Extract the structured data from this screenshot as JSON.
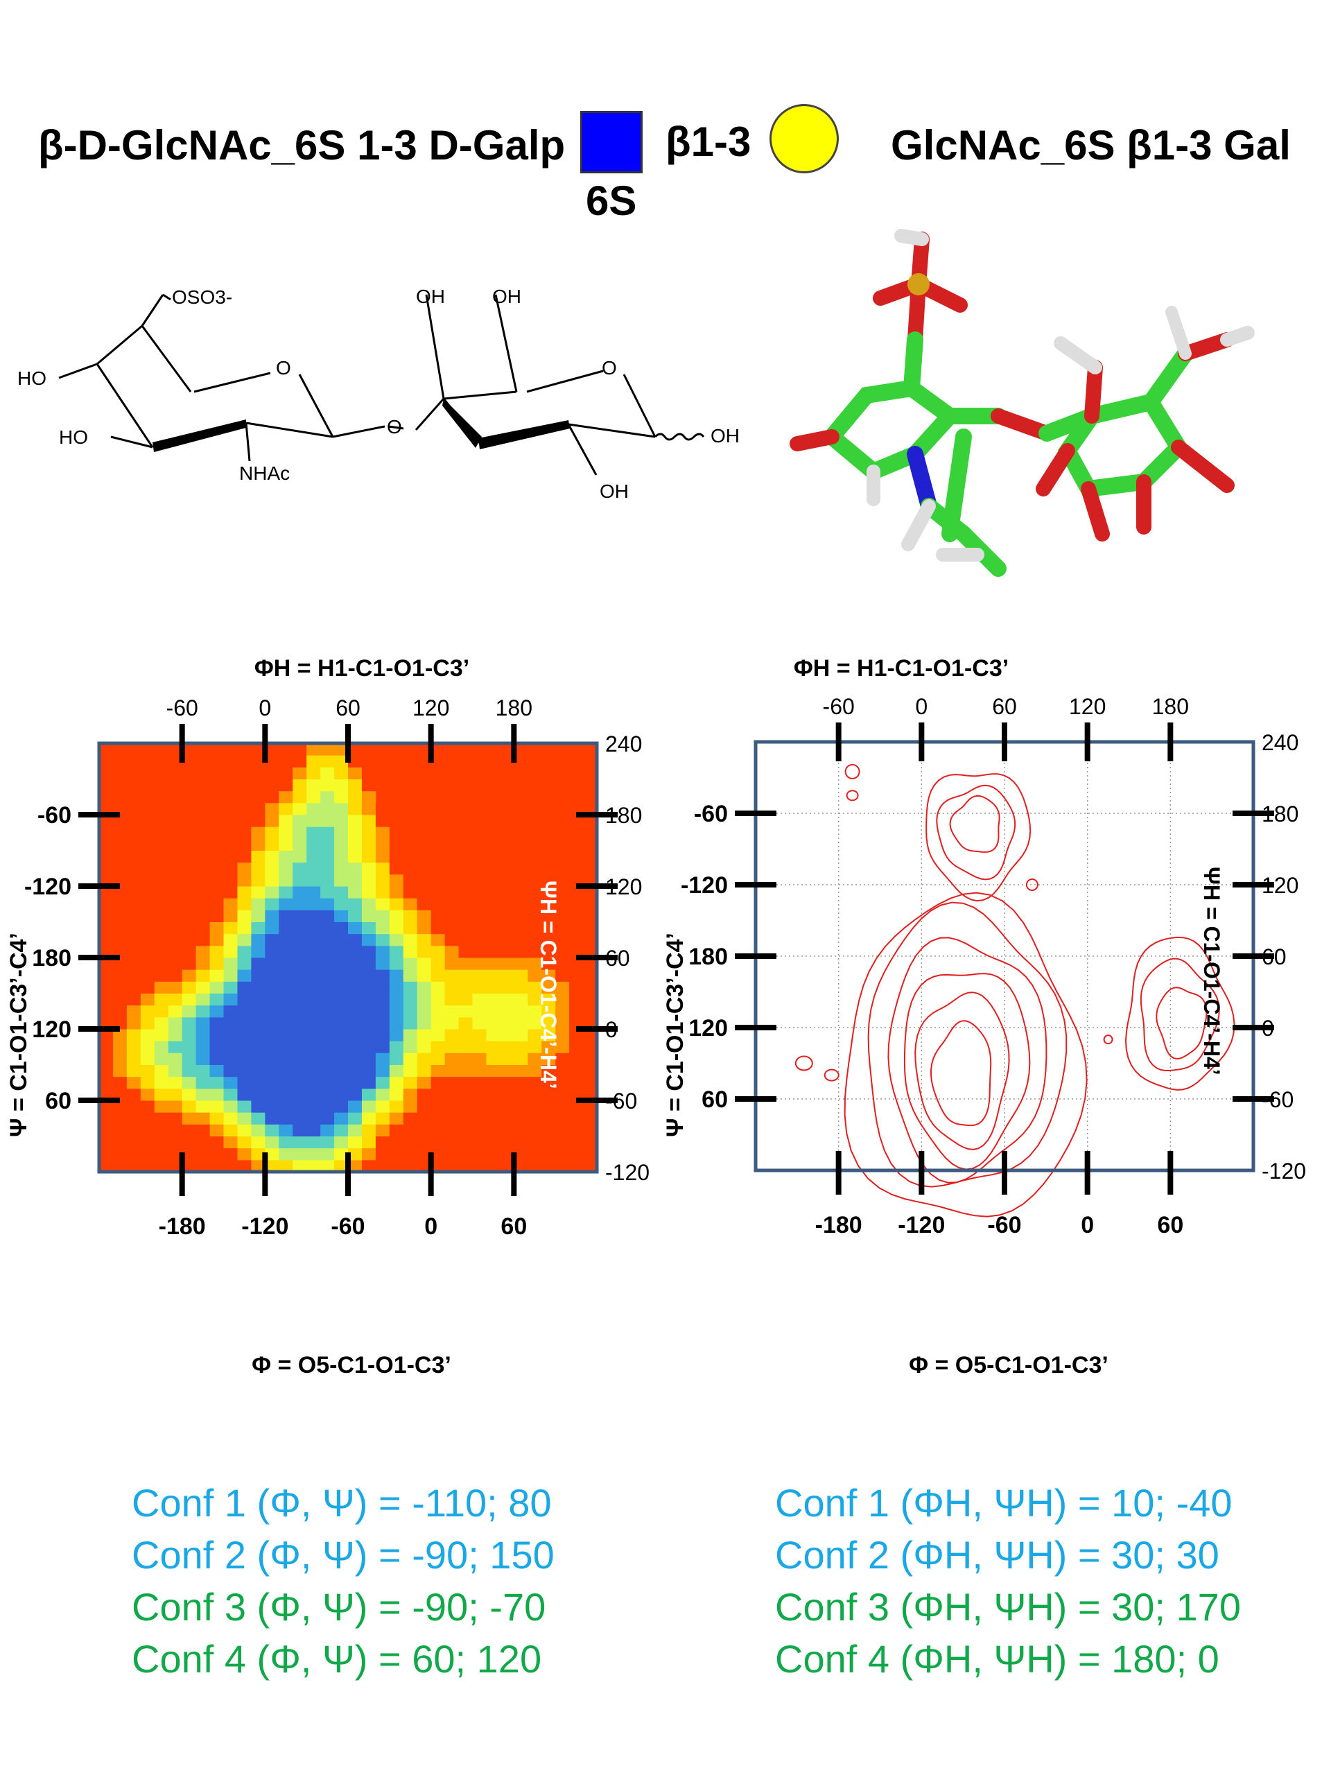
{
  "header": {
    "left_name": "β-D-GlcNAc_6S 1-3 D-Galp",
    "linkage": "β1-3",
    "square_label": "6S",
    "right_name": "GlcNAc_6S β1-3 Gal",
    "square_color": "#0000ff",
    "circle_color": "#ffff00"
  },
  "structure": {
    "labels": [
      "OSO3-",
      "O",
      "HO",
      "HO",
      "NHAc",
      "O",
      "OH",
      "OH",
      "O",
      "OH",
      "OH"
    ]
  },
  "colors": {
    "heatmap_background": "#ff3d00",
    "contour_color": "#e02020",
    "frame_color": "#3d5a80",
    "conf_blue": "#1aa7e6",
    "conf_green": "#11a84a"
  },
  "chart_data": [
    {
      "type": "heatmap",
      "top_axis_title": "ΦH = H1-C1-O1-C3’",
      "top_ticks": [
        -60,
        0,
        60,
        120,
        180
      ],
      "bottom_axis_title": "Φ = O5-C1-O1-C3’",
      "bottom_ticks": [
        -180,
        -120,
        -60,
        0,
        60
      ],
      "left_axis_title": "Ψ = C1-O1-C3’-C4’",
      "left_ticks": [
        -60,
        -120,
        180,
        120,
        60
      ],
      "right_axis_title": "ΨH = C1-O1-C4’-H4’",
      "right_ticks": [
        240,
        180,
        120,
        60,
        0,
        -60,
        -120
      ],
      "xlim": [
        -240,
        120
      ],
      "ylim_psiH": [
        -120,
        240
      ],
      "populated_regions": [
        {
          "phi": -90,
          "psiH": -40,
          "level": "highest"
        },
        {
          "phi": -80,
          "psiH": 20,
          "level": "high"
        },
        {
          "phi": -105,
          "psiH": 160,
          "level": "medium"
        },
        {
          "phi": 60,
          "psiH": 20,
          "level": "low"
        }
      ]
    },
    {
      "type": "contour",
      "top_axis_title": "ΦH = H1-C1-O1-C3’",
      "top_ticks": [
        -60,
        0,
        60,
        120,
        180
      ],
      "bottom_axis_title": "Φ = O5-C1-O1-C3’",
      "bottom_ticks": [
        -180,
        -120,
        -60,
        0,
        60
      ],
      "left_axis_title": "Ψ = C1-O1-C3’-C4’",
      "left_ticks": [
        -60,
        -120,
        180,
        120,
        60
      ],
      "right_axis_title": "ΨH = C1-O1-C4’-H4’",
      "right_ticks": [
        240,
        180,
        120,
        60,
        0,
        -60,
        -120
      ],
      "xlim": [
        -240,
        120
      ],
      "ylim_psiH": [
        -120,
        240
      ],
      "grid": true
    }
  ],
  "conformations": {
    "left": [
      {
        "label": "Conf 1 (Φ, Ψ) = -110; 80",
        "color": "blue"
      },
      {
        "label": "Conf 2 (Φ, Ψ) =   -90; 150",
        "color": "blue"
      },
      {
        "label": "Conf 3 (Φ, Ψ) =   -90; -70",
        "color": "green"
      },
      {
        "label": "Conf 4 (Φ, Ψ) =    60; 120",
        "color": "green"
      }
    ],
    "right": [
      {
        "label": "Conf 1 (ΦH, ΨH) = 10; -40",
        "color": "blue"
      },
      {
        "label": "Conf 2 (ΦH, ΨH) = 30;  30",
        "color": "blue"
      },
      {
        "label": "Conf 3 (ΦH, ΨH) = 30; 170",
        "color": "green"
      },
      {
        "label": "Conf 4 (ΦH, ΨH) = 180; 0",
        "color": "green"
      }
    ]
  }
}
